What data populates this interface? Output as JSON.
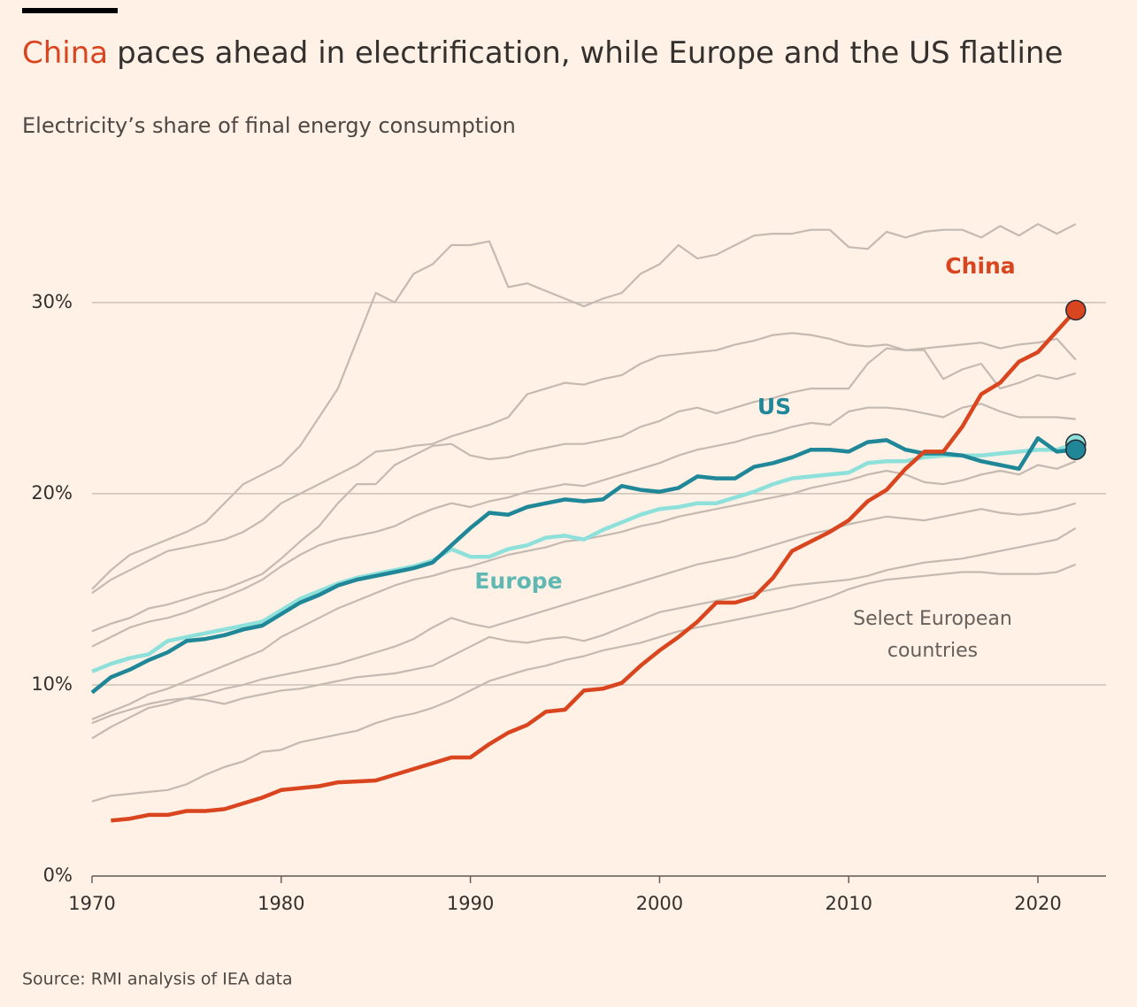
{
  "chart_data": {
    "type": "line",
    "title": [
      "China",
      "paces ahead in electrification, while Europe and the US flatline"
    ],
    "subtitle": "Electricity’s share of final energy consumption",
    "source": "Source: RMI analysis of IEA data",
    "annotation": [
      "Select European",
      "countries"
    ],
    "x": [
      1970,
      1971,
      1972,
      1973,
      1974,
      1975,
      1976,
      1977,
      1978,
      1979,
      1980,
      1981,
      1982,
      1983,
      1984,
      1985,
      1986,
      1987,
      1988,
      1989,
      1990,
      1991,
      1992,
      1993,
      1994,
      1995,
      1996,
      1997,
      1998,
      1999,
      2000,
      2001,
      2002,
      2003,
      2004,
      2005,
      2006,
      2007,
      2008,
      2009,
      2010,
      2011,
      2012,
      2013,
      2014,
      2015,
      2016,
      2017,
      2018,
      2019,
      2020,
      2021,
      2022
    ],
    "xlim": [
      1970,
      2023.6
    ],
    "xticks": [
      1970,
      1980,
      1990,
      2000,
      2010,
      2020
    ],
    "ylim": [
      0,
      35.5
    ],
    "yticks": [
      {
        "value": 0,
        "label": "0%"
      },
      {
        "value": 10,
        "label": "10%"
      },
      {
        "value": 20,
        "label": "20%"
      },
      {
        "value": 30,
        "label": "30%"
      }
    ],
    "grid": true,
    "series": [
      {
        "name": "China",
        "color": "#d9451e",
        "values": [
          null,
          2.9,
          3.0,
          3.2,
          3.2,
          3.4,
          3.4,
          3.5,
          3.8,
          4.1,
          4.5,
          4.6,
          4.7,
          4.9,
          4.95,
          5.0,
          5.3,
          5.6,
          5.9,
          6.2,
          6.2,
          6.9,
          7.5,
          7.9,
          8.6,
          8.7,
          9.7,
          9.8,
          10.1,
          11.0,
          11.8,
          12.5,
          13.3,
          14.3,
          14.3,
          14.6,
          15.6,
          17.0,
          17.5,
          18.0,
          18.6,
          19.6,
          20.2,
          21.3,
          22.2,
          22.2,
          23.5,
          25.2,
          25.8,
          26.9,
          27.4,
          28.5,
          29.6
        ]
      },
      {
        "name": "US",
        "color": "#1f8797",
        "values": [
          9.6,
          10.4,
          10.8,
          11.3,
          11.7,
          12.3,
          12.4,
          12.6,
          12.9,
          13.1,
          13.7,
          14.3,
          14.7,
          15.2,
          15.5,
          15.7,
          15.9,
          16.1,
          16.4,
          17.3,
          18.2,
          19.0,
          18.9,
          19.3,
          19.5,
          19.7,
          19.6,
          19.7,
          20.4,
          20.2,
          20.1,
          20.3,
          20.9,
          20.8,
          20.8,
          21.4,
          21.6,
          21.9,
          22.3,
          22.3,
          22.2,
          22.7,
          22.8,
          22.3,
          22.1,
          22.1,
          22.0,
          21.7,
          21.5,
          21.3,
          22.9,
          22.2,
          22.3
        ]
      },
      {
        "name": "Europe",
        "color": "#8ee0da",
        "values": [
          10.7,
          11.1,
          11.4,
          11.6,
          12.3,
          12.5,
          12.7,
          12.9,
          13.1,
          13.3,
          13.9,
          14.5,
          14.9,
          15.3,
          15.6,
          15.8,
          16.0,
          16.2,
          16.5,
          17.1,
          16.7,
          16.7,
          17.1,
          17.3,
          17.7,
          17.8,
          17.6,
          18.1,
          18.5,
          18.9,
          19.2,
          19.3,
          19.5,
          19.5,
          19.8,
          20.1,
          20.5,
          20.8,
          20.9,
          21.0,
          21.1,
          21.6,
          21.7,
          21.7,
          21.9,
          22.0,
          22.0,
          22.0,
          22.1,
          22.2,
          22.3,
          22.3,
          22.6
        ]
      },
      {
        "color": "#c4bab2",
        "values": [
          15.0,
          16.0,
          16.8,
          17.2,
          17.6,
          18.0,
          18.5,
          19.5,
          20.5,
          21.0,
          21.5,
          22.5,
          24.0,
          25.5,
          28.0,
          30.5,
          30.0,
          31.5,
          32.0,
          33.0,
          33.0,
          33.2,
          30.8,
          31.0,
          30.6,
          30.2,
          29.8,
          30.2,
          30.5,
          31.5,
          32.0,
          33.0,
          32.3,
          32.5,
          33.0,
          33.5,
          33.6,
          33.6,
          33.8,
          33.8,
          32.9,
          32.8,
          33.7,
          33.4,
          33.7,
          33.8,
          33.8,
          33.4,
          34.0,
          33.5,
          34.1,
          33.6,
          34.1
        ]
      },
      {
        "color": "#c4bab2",
        "values": [
          14.8,
          15.5,
          16.0,
          16.5,
          17.0,
          17.2,
          17.4,
          17.6,
          18.0,
          18.6,
          19.5,
          20.0,
          20.5,
          21.0,
          21.5,
          22.2,
          22.3,
          22.5,
          22.6,
          23.0,
          23.3,
          23.6,
          24.0,
          25.2,
          25.5,
          25.8,
          25.7,
          26.0,
          26.2,
          26.8,
          27.2,
          27.3,
          27.4,
          27.5,
          27.8,
          28.0,
          28.3,
          28.4,
          28.3,
          28.1,
          27.8,
          27.7,
          27.8,
          27.5,
          27.6,
          27.7,
          27.8,
          27.9,
          27.6,
          27.8,
          27.9,
          28.1,
          27.0
        ]
      },
      {
        "color": "#c4bab2",
        "values": [
          12.8,
          13.2,
          13.5,
          14.0,
          14.2,
          14.5,
          14.8,
          15.0,
          15.4,
          15.8,
          16.6,
          17.5,
          18.3,
          19.5,
          20.5,
          20.5,
          21.5,
          22.0,
          22.5,
          22.6,
          22.0,
          21.8,
          21.9,
          22.2,
          22.4,
          22.6,
          22.6,
          22.8,
          23.0,
          23.5,
          23.8,
          24.3,
          24.5,
          24.2,
          24.5,
          24.8,
          25.0,
          25.3,
          25.5,
          25.5,
          25.5,
          26.8,
          27.6,
          27.5,
          27.5,
          26.0,
          26.5,
          26.8,
          25.5,
          25.8,
          26.2,
          26.0,
          26.3
        ]
      },
      {
        "color": "#c4bab2",
        "values": [
          12.0,
          12.5,
          13.0,
          13.3,
          13.5,
          13.8,
          14.2,
          14.6,
          15.0,
          15.5,
          16.2,
          16.8,
          17.3,
          17.6,
          17.8,
          18.0,
          18.3,
          18.8,
          19.2,
          19.5,
          19.3,
          19.6,
          19.8,
          20.1,
          20.3,
          20.5,
          20.4,
          20.7,
          21.0,
          21.3,
          21.6,
          22.0,
          22.3,
          22.5,
          22.7,
          23.0,
          23.2,
          23.5,
          23.7,
          23.6,
          24.3,
          24.5,
          24.5,
          24.4,
          24.2,
          24.0,
          24.5,
          24.7,
          24.3,
          24.0,
          24.0,
          24.0,
          23.9
        ]
      },
      {
        "color": "#c4bab2",
        "values": [
          8.2,
          8.6,
          9.0,
          9.5,
          9.8,
          10.2,
          10.6,
          11.0,
          11.4,
          11.8,
          12.5,
          13.0,
          13.5,
          14.0,
          14.4,
          14.8,
          15.2,
          15.5,
          15.7,
          16.0,
          16.2,
          16.5,
          16.8,
          17.0,
          17.2,
          17.5,
          17.6,
          17.8,
          18.0,
          18.3,
          18.5,
          18.8,
          19.0,
          19.2,
          19.4,
          19.6,
          19.8,
          20.0,
          20.3,
          20.5,
          20.7,
          21.0,
          21.2,
          21.0,
          20.6,
          20.5,
          20.7,
          21.0,
          21.2,
          21.0,
          21.5,
          21.3,
          21.7
        ]
      },
      {
        "color": "#c4bab2",
        "values": [
          7.2,
          7.8,
          8.3,
          8.8,
          9.0,
          9.3,
          9.5,
          9.8,
          10.0,
          10.3,
          10.5,
          10.7,
          10.9,
          11.1,
          11.4,
          11.7,
          12.0,
          12.4,
          13.0,
          13.5,
          13.2,
          13.0,
          13.3,
          13.6,
          13.9,
          14.2,
          14.5,
          14.8,
          15.1,
          15.4,
          15.7,
          16.0,
          16.3,
          16.5,
          16.7,
          17.0,
          17.3,
          17.6,
          17.9,
          18.1,
          18.4,
          18.6,
          18.8,
          18.7,
          18.6,
          18.8,
          19.0,
          19.2,
          19.0,
          18.9,
          19.0,
          19.2,
          19.5
        ]
      },
      {
        "color": "#c4bab2",
        "values": [
          3.9,
          4.2,
          4.3,
          4.4,
          4.5,
          4.8,
          5.3,
          5.7,
          6.0,
          6.5,
          6.6,
          7.0,
          7.2,
          7.4,
          7.6,
          8.0,
          8.3,
          8.5,
          8.8,
          9.2,
          9.7,
          10.2,
          10.5,
          10.8,
          11.0,
          11.3,
          11.5,
          11.8,
          12.0,
          12.2,
          12.5,
          12.8,
          13.0,
          13.2,
          13.4,
          13.6,
          13.8,
          14.0,
          14.3,
          14.6,
          15.0,
          15.3,
          15.5,
          15.6,
          15.7,
          15.8,
          15.9,
          15.9,
          15.8,
          15.8,
          15.8,
          15.9,
          16.3
        ]
      },
      {
        "color": "#c4bab2",
        "values": [
          8.0,
          8.4,
          8.7,
          9.0,
          9.2,
          9.3,
          9.2,
          9.0,
          9.3,
          9.5,
          9.7,
          9.8,
          10.0,
          10.2,
          10.4,
          10.5,
          10.6,
          10.8,
          11.0,
          11.5,
          12.0,
          12.5,
          12.3,
          12.2,
          12.4,
          12.5,
          12.3,
          12.6,
          13.0,
          13.4,
          13.8,
          14.0,
          14.2,
          14.4,
          14.6,
          14.8,
          15.0,
          15.2,
          15.3,
          15.4,
          15.5,
          15.7,
          16.0,
          16.2,
          16.4,
          16.5,
          16.6,
          16.8,
          17.0,
          17.2,
          17.4,
          17.6,
          18.2
        ]
      }
    ]
  }
}
